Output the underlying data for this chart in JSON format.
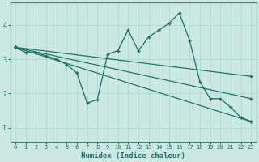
{
  "xlabel": "Humidex (Indice chaleur)",
  "bg_color": "#cce8e2",
  "grid_color": "#b8d8d2",
  "line_color": "#1a6e64",
  "xlim": [
    -0.5,
    23.5
  ],
  "ylim": [
    0.6,
    4.65
  ],
  "yticks": [
    1,
    2,
    3,
    4
  ],
  "xticks": [
    0,
    1,
    2,
    3,
    4,
    5,
    6,
    7,
    8,
    9,
    10,
    11,
    12,
    13,
    14,
    15,
    16,
    17,
    18,
    19,
    20,
    21,
    22,
    23
  ],
  "curves": [
    {
      "x": [
        0,
        1,
        2,
        3,
        4,
        5,
        6,
        7,
        8,
        9,
        10,
        11,
        12,
        13,
        14,
        15,
        16,
        17,
        18,
        19,
        20,
        21,
        22,
        23
      ],
      "y": [
        3.35,
        3.2,
        3.2,
        3.1,
        3.0,
        2.85,
        2.6,
        1.72,
        1.82,
        3.15,
        3.25,
        3.85,
        3.25,
        3.65,
        3.85,
        4.05,
        4.35,
        3.55,
        2.35,
        1.85,
        1.85,
        1.6,
        1.3,
        1.18
      ]
    },
    {
      "x": [
        0,
        23
      ],
      "y": [
        3.35,
        1.18
      ]
    },
    {
      "x": [
        0,
        23
      ],
      "y": [
        3.35,
        1.85
      ]
    },
    {
      "x": [
        0,
        23
      ],
      "y": [
        3.35,
        2.5
      ]
    }
  ]
}
